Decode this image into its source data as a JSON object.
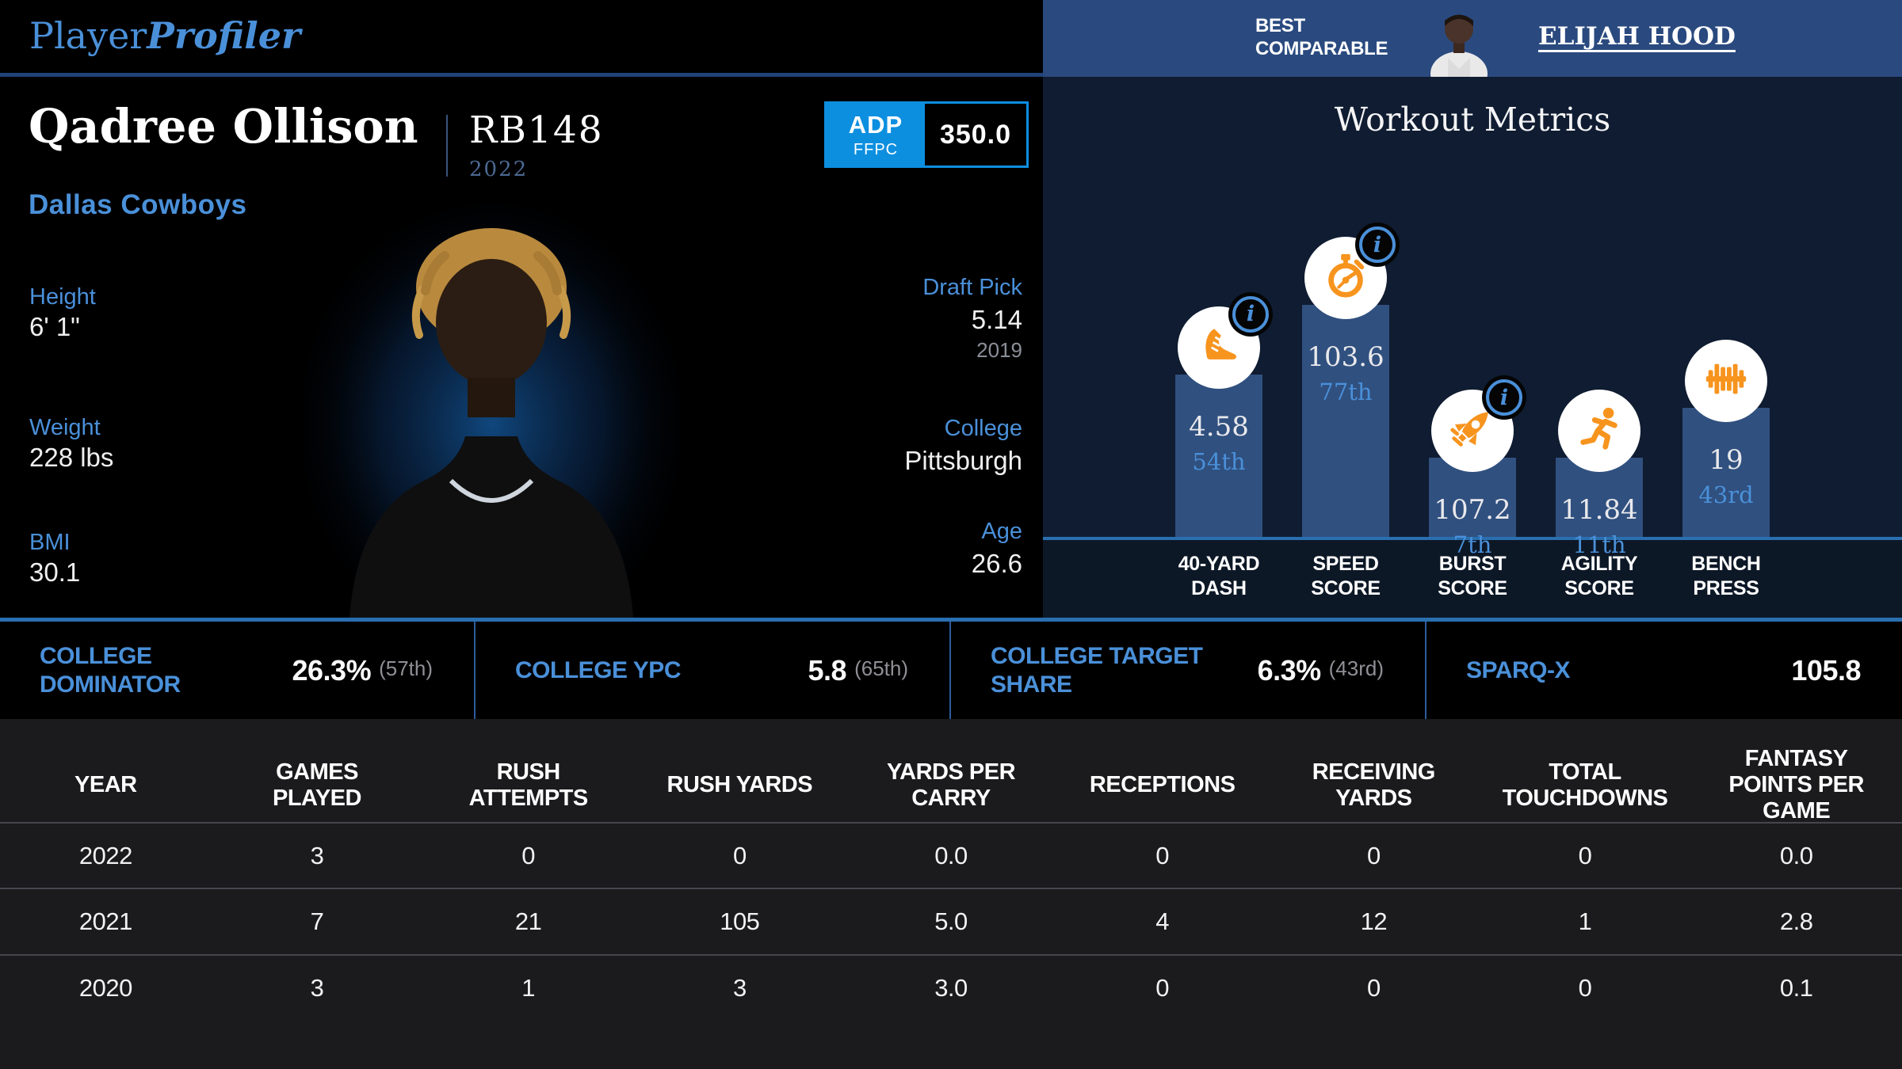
{
  "brand": {
    "logo_regular": "Player",
    "logo_italic": "Profiler"
  },
  "colors": {
    "accent_blue": "#4a90d9",
    "orange": "#f7941e",
    "adp_blue": "#0d8fe0",
    "comparable_header_blue": "#2a4a7f",
    "chart_bg_navy": "#0f1c31",
    "bar_blue": "#30507f",
    "baseline_blue": "#2a6fb0"
  },
  "player": {
    "name": "Qadree Ollison",
    "rank": "RB148",
    "rank_year": "2022",
    "team": "Dallas Cowboys",
    "adp": {
      "label": "ADP",
      "format": "FFPC",
      "value": "350.0"
    },
    "bio": [
      {
        "label": "Height",
        "value": "6' 1\""
      },
      {
        "label": "Weight",
        "value": "228 lbs"
      },
      {
        "label": "BMI",
        "value": "30.1"
      }
    ],
    "draft": [
      {
        "label": "Draft Pick",
        "value": "5.14",
        "sub": "2019"
      },
      {
        "label": "College",
        "value": "Pittsburgh",
        "sub": ""
      },
      {
        "label": "Age",
        "value": "26.6",
        "sub": ""
      }
    ]
  },
  "best_comparable": {
    "label": "BEST\nCOMPARABLE",
    "name": "ELIJAH HOOD"
  },
  "workout": {
    "title": "Workout Metrics",
    "chart_data": {
      "type": "bar",
      "title": "Workout Metrics",
      "categories": [
        "40-YARD\nDASH",
        "SPEED\nSCORE",
        "BURST\nSCORE",
        "AGILITY\nSCORE",
        "BENCH\nPRESS"
      ],
      "values": [
        "4.58",
        "103.6",
        "107.2",
        "11.84",
        "19"
      ],
      "percentiles": [
        54,
        77,
        7,
        11,
        43
      ],
      "percentile_labels": [
        "54th",
        "77th",
        "7th",
        "11th",
        "43rd"
      ],
      "icons": [
        "shoe-icon",
        "stopwatch-icon",
        "rocket-icon",
        "runner-icon",
        "dumbbell-icon"
      ],
      "info_badges": [
        true,
        true,
        true,
        false,
        false
      ],
      "legend": "none",
      "grid": false
    }
  },
  "college_stats": [
    {
      "label": "COLLEGE DOMINATOR",
      "value": "26.3%",
      "percentile": "(57th)"
    },
    {
      "label": "COLLEGE YPC",
      "value": "5.8",
      "percentile": "(65th)"
    },
    {
      "label": "COLLEGE TARGET SHARE",
      "value": "6.3%",
      "percentile": "(43rd)"
    },
    {
      "label": "SPARQ-X",
      "value": "105.8",
      "percentile": ""
    }
  ],
  "season_table": {
    "headers": [
      "YEAR",
      "GAMES PLAYED",
      "RUSH ATTEMPTS",
      "RUSH YARDS",
      "YARDS PER CARRY",
      "RECEPTIONS",
      "RECEIVING YARDS",
      "TOTAL TOUCHDOWNS",
      "FANTASY POINTS PER GAME"
    ],
    "rows": [
      [
        "2022",
        "3",
        "0",
        "0",
        "0.0",
        "0",
        "0",
        "0",
        "0.0"
      ],
      [
        "2021",
        "7",
        "21",
        "105",
        "5.0",
        "4",
        "12",
        "1",
        "2.8"
      ],
      [
        "2020",
        "3",
        "1",
        "3",
        "3.0",
        "0",
        "0",
        "0",
        "0.1"
      ]
    ]
  }
}
